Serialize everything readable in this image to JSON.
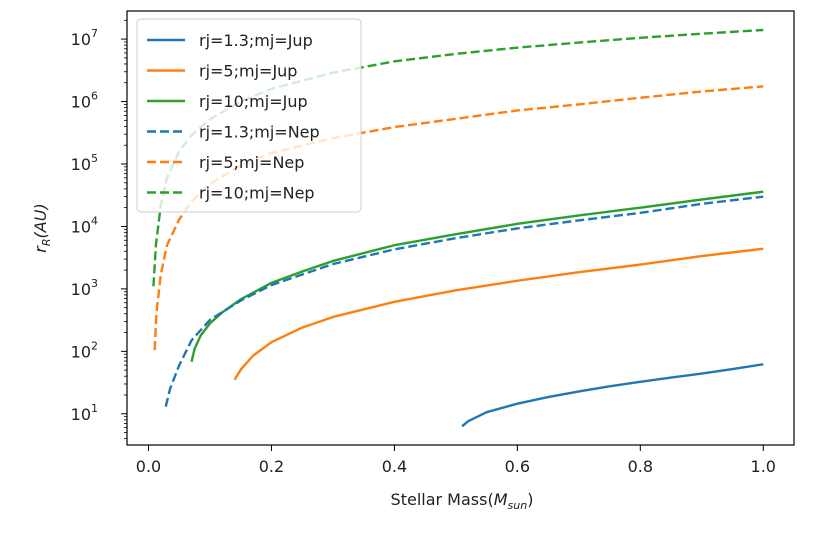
{
  "chart_data": {
    "type": "line",
    "xlabel_main": "Stellar Mass(",
    "xlabel_sym": "M",
    "xlabel_sub": "sun",
    "xlabel_close": ")",
    "ylabel_sym": "r",
    "ylabel_sub": "R",
    "ylabel_rest": "(AU)",
    "xlim": [
      -0.035,
      1.05
    ],
    "ylim_log10": [
      0.5,
      7.45
    ],
    "yscale": "log",
    "grid": false,
    "legend_position": "top-left",
    "x_ticks": [
      {
        "value": 0.0,
        "label": "0.0"
      },
      {
        "value": 0.2,
        "label": "0.2"
      },
      {
        "value": 0.4,
        "label": "0.4"
      },
      {
        "value": 0.6,
        "label": "0.6"
      },
      {
        "value": 0.8,
        "label": "0.8"
      },
      {
        "value": 1.0,
        "label": "1.0"
      }
    ],
    "y_ticks": [
      {
        "exp": 1,
        "base": "10",
        "sup": "1"
      },
      {
        "exp": 2,
        "base": "10",
        "sup": "2"
      },
      {
        "exp": 3,
        "base": "10",
        "sup": "3"
      },
      {
        "exp": 4,
        "base": "10",
        "sup": "4"
      },
      {
        "exp": 5,
        "base": "10",
        "sup": "5"
      },
      {
        "exp": 6,
        "base": "10",
        "sup": "6"
      },
      {
        "exp": 7,
        "base": "10",
        "sup": "7"
      }
    ],
    "series": [
      {
        "name": "rj=1.3;mj=Jup",
        "color": "#1f77b4",
        "dash": "solid",
        "points": [
          [
            0.51,
            6.3
          ],
          [
            0.52,
            7.6
          ],
          [
            0.55,
            10.6
          ],
          [
            0.6,
            14.5
          ],
          [
            0.65,
            18.5
          ],
          [
            0.7,
            22.8
          ],
          [
            0.75,
            27.5
          ],
          [
            0.8,
            32.5
          ],
          [
            0.85,
            38.0
          ],
          [
            0.9,
            44.0
          ],
          [
            0.95,
            52.0
          ],
          [
            1.0,
            62.0
          ]
        ]
      },
      {
        "name": "rj=5;mj=Jup",
        "color": "#ff7f0e",
        "dash": "solid",
        "points": [
          [
            0.14,
            35
          ],
          [
            0.15,
            51
          ],
          [
            0.17,
            85
          ],
          [
            0.2,
            140
          ],
          [
            0.25,
            240
          ],
          [
            0.3,
            355
          ],
          [
            0.4,
            620
          ],
          [
            0.5,
            950
          ],
          [
            0.6,
            1350
          ],
          [
            0.7,
            1850
          ],
          [
            0.8,
            2450
          ],
          [
            0.9,
            3350
          ],
          [
            1.0,
            4400
          ]
        ]
      },
      {
        "name": "rj=10;mj=Jup",
        "color": "#2ca02c",
        "dash": "solid",
        "points": [
          [
            0.07,
            68
          ],
          [
            0.075,
            110
          ],
          [
            0.085,
            180
          ],
          [
            0.1,
            280
          ],
          [
            0.12,
            420
          ],
          [
            0.15,
            680
          ],
          [
            0.2,
            1250
          ],
          [
            0.25,
            1900
          ],
          [
            0.3,
            2800
          ],
          [
            0.4,
            5000
          ],
          [
            0.5,
            7500
          ],
          [
            0.6,
            11000
          ],
          [
            0.7,
            15000
          ],
          [
            0.8,
            20000
          ],
          [
            0.9,
            27000
          ],
          [
            1.0,
            36000
          ]
        ]
      },
      {
        "name": "rj=1.3;mj=Nep",
        "color": "#1f77b4",
        "dash": "dashed",
        "points": [
          [
            0.028,
            13
          ],
          [
            0.035,
            25
          ],
          [
            0.05,
            60
          ],
          [
            0.07,
            150
          ],
          [
            0.1,
            320
          ],
          [
            0.15,
            650
          ],
          [
            0.2,
            1150
          ],
          [
            0.25,
            1700
          ],
          [
            0.3,
            2500
          ],
          [
            0.4,
            4300
          ],
          [
            0.5,
            6500
          ],
          [
            0.6,
            9300
          ],
          [
            0.7,
            12500
          ],
          [
            0.8,
            16500
          ],
          [
            0.9,
            23000
          ],
          [
            1.0,
            30000
          ]
        ]
      },
      {
        "name": "rj=5;mj=Nep",
        "color": "#ff7f0e",
        "dash": "dashed",
        "points": [
          [
            0.01,
            105
          ],
          [
            0.013,
            420
          ],
          [
            0.02,
            1700
          ],
          [
            0.03,
            5000
          ],
          [
            0.05,
            13000
          ],
          [
            0.07,
            25000
          ],
          [
            0.1,
            48000
          ],
          [
            0.15,
            95000
          ],
          [
            0.2,
            150000
          ],
          [
            0.3,
            260000
          ],
          [
            0.4,
            390000
          ],
          [
            0.5,
            530000
          ],
          [
            0.6,
            720000
          ],
          [
            0.7,
            900000
          ],
          [
            0.8,
            1150000
          ],
          [
            0.9,
            1450000
          ],
          [
            1.0,
            1750000
          ]
        ]
      },
      {
        "name": "rj=10;mj=Nep",
        "color": "#2ca02c",
        "dash": "dashed",
        "points": [
          [
            0.008,
            1100
          ],
          [
            0.012,
            5000
          ],
          [
            0.02,
            22000
          ],
          [
            0.03,
            60000
          ],
          [
            0.05,
            160000
          ],
          [
            0.07,
            290000
          ],
          [
            0.1,
            520000
          ],
          [
            0.15,
            1000000
          ],
          [
            0.2,
            1600000
          ],
          [
            0.3,
            2900000
          ],
          [
            0.4,
            4400000
          ],
          [
            0.5,
            5800000
          ],
          [
            0.6,
            7300000
          ],
          [
            0.7,
            8800000
          ],
          [
            0.8,
            10500000
          ],
          [
            0.9,
            12200000
          ],
          [
            1.0,
            14000000
          ]
        ]
      }
    ]
  }
}
